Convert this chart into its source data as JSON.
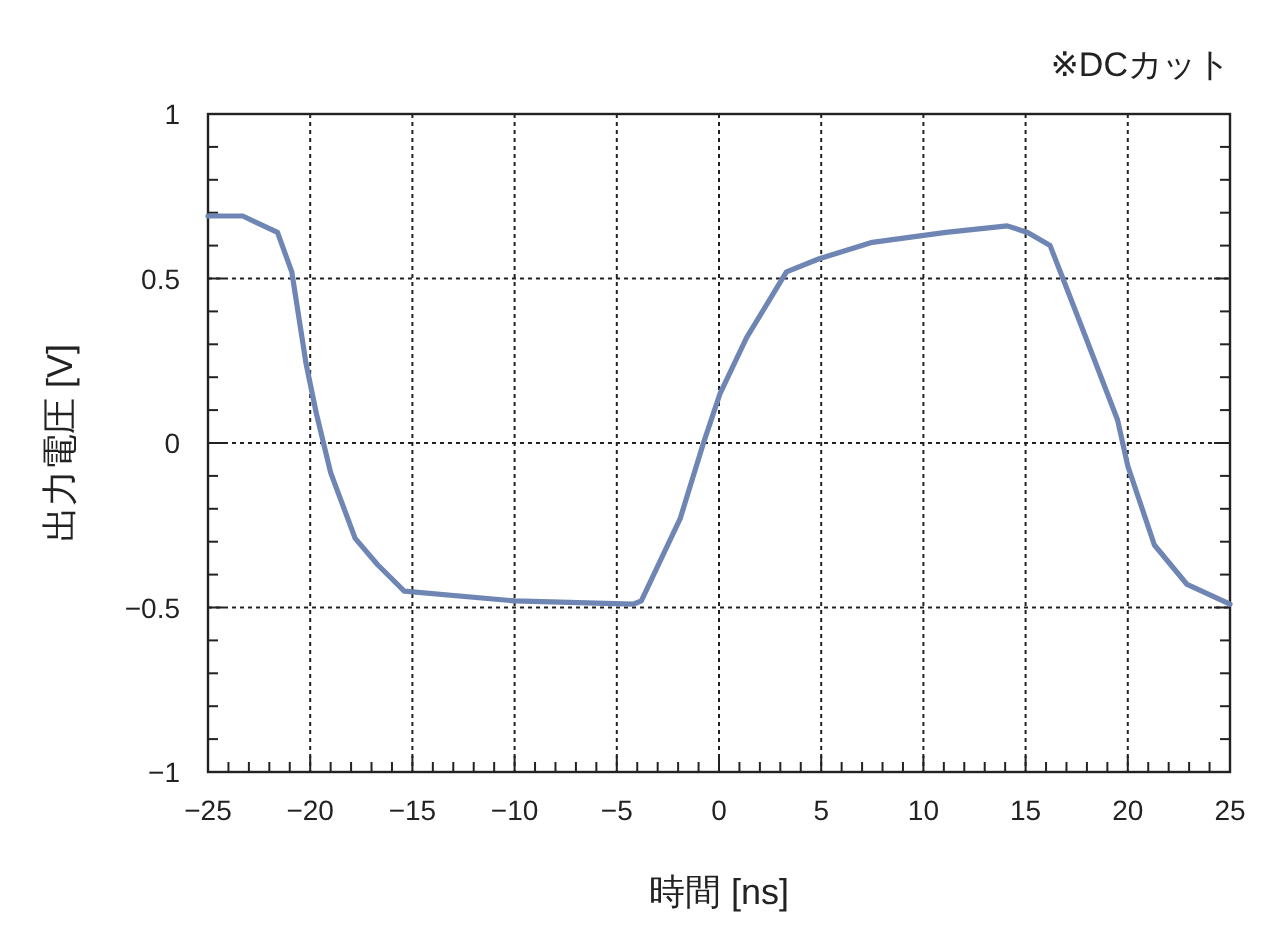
{
  "chart_data": {
    "type": "line",
    "xlabel": "時間 [ns]",
    "ylabel": "出力電圧 [V]",
    "annotations": [
      "※DCカット"
    ],
    "xlim": [
      -25,
      25
    ],
    "xticks": [
      {
        "value": -25,
        "label": "−25"
      },
      {
        "value": -20,
        "label": "−20"
      },
      {
        "value": -15,
        "label": "−15"
      },
      {
        "value": -10,
        "label": "−10"
      },
      {
        "value": -5,
        "label": "−5"
      },
      0,
      5,
      10,
      15,
      20,
      25,
      {
        "value": -24,
        "label": null
      },
      {
        "value": -23,
        "label": null
      },
      {
        "value": -22,
        "label": null
      },
      {
        "value": -21,
        "label": null
      },
      {
        "value": -19,
        "label": null
      },
      {
        "value": -18,
        "label": null
      },
      {
        "value": -17,
        "label": null
      },
      {
        "value": -16,
        "label": null
      },
      {
        "value": -14,
        "label": null
      },
      {
        "value": -13,
        "label": null
      },
      {
        "value": -12,
        "label": null
      },
      {
        "value": -11,
        "label": null
      },
      {
        "value": -9,
        "label": null
      },
      {
        "value": -8,
        "label": null
      },
      {
        "value": -7,
        "label": null
      },
      {
        "value": -6,
        "label": null
      },
      {
        "value": -4,
        "label": null
      },
      {
        "value": -3,
        "label": null
      },
      {
        "value": -2,
        "label": null
      },
      {
        "value": -1,
        "label": null
      },
      {
        "value": 1,
        "label": null
      },
      {
        "value": 2,
        "label": null
      },
      {
        "value": 3,
        "label": null
      },
      {
        "value": 4,
        "label": null
      },
      {
        "value": 6,
        "label": null
      },
      {
        "value": 7,
        "label": null
      },
      {
        "value": 8,
        "label": null
      },
      {
        "value": 9,
        "label": null
      },
      {
        "value": 11,
        "label": null
      },
      {
        "value": 12,
        "label": null
      },
      {
        "value": 13,
        "label": null
      },
      {
        "value": 14,
        "label": null
      },
      {
        "value": 16,
        "label": null
      },
      {
        "value": 17,
        "label": null
      },
      {
        "value": 18,
        "label": null
      },
      {
        "value": 19,
        "label": null
      },
      {
        "value": 21,
        "label": null
      },
      {
        "value": 22,
        "label": null
      },
      {
        "value": 23,
        "label": null
      },
      {
        "value": 24,
        "label": null
      }
    ],
    "ylim": [
      -1,
      1
    ],
    "yticks": [
      {
        "value": -1,
        "label": "−1"
      },
      {
        "value": -0.5,
        "label": "−0.5"
      },
      0,
      0.5,
      1,
      {
        "value": -0.9,
        "label": null
      },
      {
        "value": -0.8,
        "label": null
      },
      {
        "value": -0.7,
        "label": null
      },
      {
        "value": -0.6,
        "label": null
      },
      {
        "value": -0.4,
        "label": null
      },
      {
        "value": -0.3,
        "label": null
      },
      {
        "value": -0.2,
        "label": null
      },
      {
        "value": -0.1,
        "label": null
      },
      {
        "value": 0.1,
        "label": null
      },
      {
        "value": 0.2,
        "label": null
      },
      {
        "value": 0.3,
        "label": null
      },
      {
        "value": 0.4,
        "label": null
      },
      {
        "value": 0.6,
        "label": null
      },
      {
        "value": 0.7,
        "label": null
      },
      {
        "value": 0.8,
        "label": null
      },
      {
        "value": 0.9,
        "label": null
      }
    ],
    "grid": true,
    "line_style": "solid",
    "series": [
      {
        "color": "#6f86b5",
        "x": [
          -25,
          -23.3,
          -21.6,
          -20.9,
          -20.2,
          -19.7,
          -19.0,
          -17.8,
          -16.7,
          -15.4,
          -10.0,
          -4.2,
          -3.8,
          -1.9,
          -0.76,
          0.05,
          1.35,
          3.3,
          4.9,
          7.5,
          11.1,
          14.1,
          15.1,
          16.2,
          17.7,
          19.5,
          20.0,
          21.3,
          22.9,
          25
        ],
        "values": [
          0.69,
          0.69,
          0.64,
          0.52,
          0.24,
          0.09,
          -0.09,
          -0.29,
          -0.37,
          -0.45,
          -0.48,
          -0.49,
          -0.48,
          -0.23,
          0.0,
          0.15,
          0.32,
          0.52,
          0.56,
          0.61,
          0.64,
          0.66,
          0.64,
          0.6,
          0.36,
          0.07,
          -0.07,
          -0.31,
          -0.43,
          -0.49
        ]
      }
    ]
  }
}
